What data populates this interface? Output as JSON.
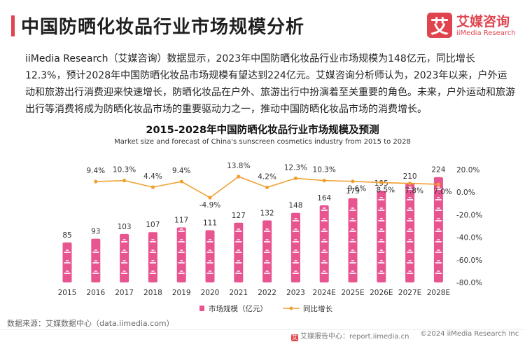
{
  "header": {
    "title": "中国防晒化妆品行业市场规模分析",
    "logo_mark": "艾",
    "logo_cn": "艾媒咨询",
    "logo_en": "iiMedia Research"
  },
  "paragraph": "iiMedia Research（艾媒咨询）数据显示，2023年中国防晒化妆品行业市场规模为148亿元，同比增长12.3%，预计2028年中国防晒化妆品市场规模有望达到224亿元。艾媒咨询分析师认为，2023年以来，户外运动和旅游出行消费迎来快速增长，防晒化妆品在户外、旅游出行中扮演着至关重要的角色。未来，户外运动和旅游出行等消费将成为防晒化妆品市场的重要驱动力之一，推动中国防晒化妆品市场的消费增长。",
  "chart_data": {
    "type": "bar",
    "title": "2015-2028年中国防晒化妆品行业市场规模及预测",
    "subtitle": "Market size and forecast of China's sunscreen cosmetics industry from 2015 to 2028",
    "categories": [
      "2015",
      "2016",
      "2017",
      "2018",
      "2019",
      "2020",
      "2021",
      "2022",
      "2023",
      "2024E",
      "2025E",
      "2026E",
      "2027E",
      "2028E"
    ],
    "series": [
      {
        "name": "市场规模（亿元）",
        "type": "bar",
        "axis": "left",
        "color": "#e8548f",
        "values": [
          85,
          93,
          103,
          107,
          117,
          111,
          127,
          132,
          148,
          164,
          179,
          195,
          210,
          224
        ],
        "labels": [
          "85",
          "93",
          "103",
          "107",
          "117",
          "111",
          "127",
          "132",
          "148",
          "164",
          "179",
          "195",
          "210",
          "224"
        ]
      },
      {
        "name": "同比增长",
        "type": "line",
        "axis": "right",
        "color": "#f0a030",
        "values": [
          null,
          9.4,
          10.3,
          4.4,
          9.4,
          -4.9,
          13.8,
          4.2,
          12.3,
          10.3,
          9.6,
          8.5,
          7.8,
          7.0
        ],
        "labels": [
          "",
          "9.4%",
          "10.3%",
          "4.4%",
          "9.4%",
          "-4.9%",
          "13.8%",
          "4.2%",
          "12.3%",
          "10.3%",
          "9.6%",
          "8.5%",
          "7.8%",
          "7.0%"
        ]
      }
    ],
    "ylim_left": [
      0,
      240
    ],
    "ylim_right": [
      -80,
      20
    ],
    "right_ticks": [
      "20.0%",
      "0.0%",
      "-20.0%",
      "-40.0%",
      "-60.0%",
      "-80.0%"
    ],
    "right_tick_values": [
      20,
      0,
      -20,
      -40,
      -60,
      -80
    ],
    "left_axis_visible": false,
    "grid": false,
    "legend_position": "bottom"
  },
  "source": "数据来源：艾媒数据中心（data.iimedia.com）",
  "footer": {
    "left": "艾媒报告中心：report.iimedia.cn",
    "right": "©2024  iiMedia Research  Inc"
  }
}
